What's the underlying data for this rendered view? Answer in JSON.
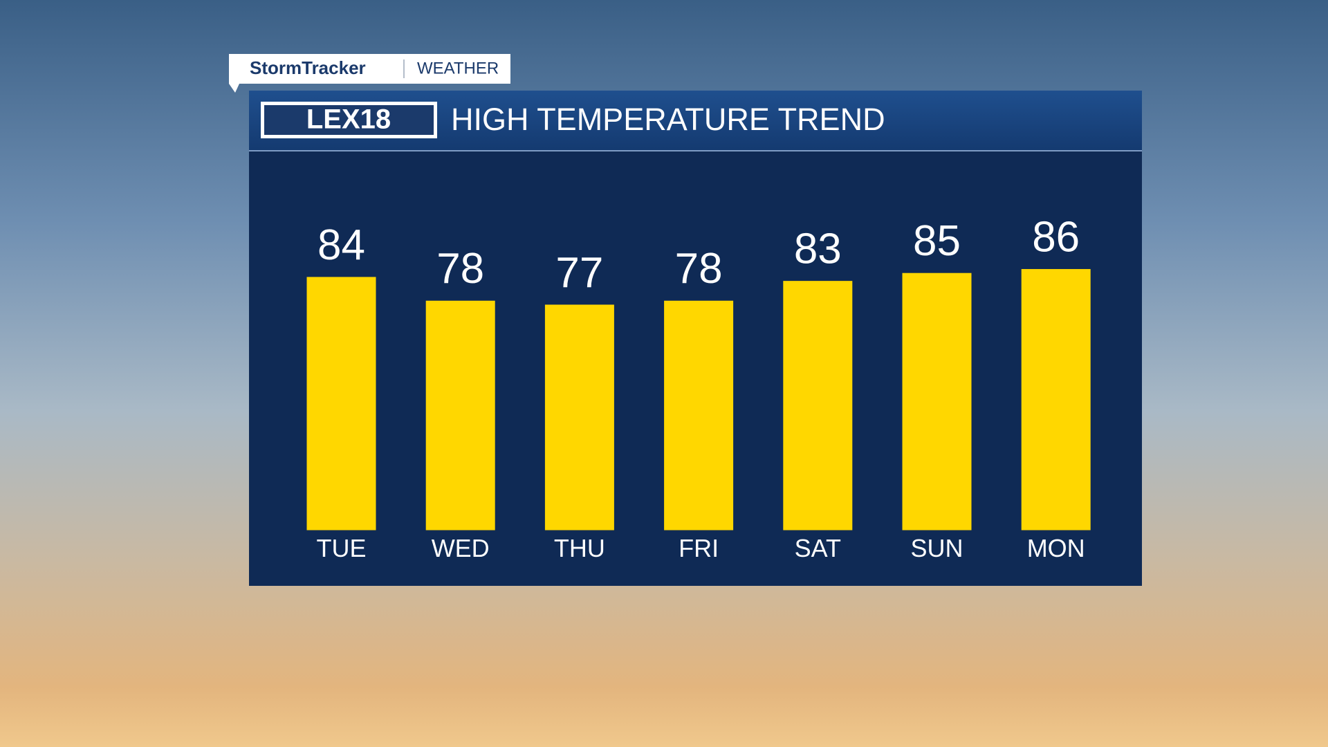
{
  "header": {
    "brand": "StormTracker",
    "section": "WEATHER",
    "logo": "LEX18"
  },
  "chart_data": {
    "type": "bar",
    "title": "HIGH TEMPERATURE TREND",
    "categories": [
      "TUE",
      "WED",
      "THU",
      "FRI",
      "SAT",
      "SUN",
      "MON"
    ],
    "values": [
      84,
      78,
      77,
      78,
      83,
      85,
      86
    ],
    "color": "#ffd700",
    "ylim": [
      20,
      100
    ]
  }
}
